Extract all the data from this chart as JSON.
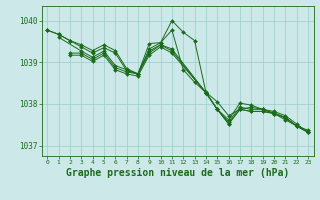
{
  "background_color": "#cce8e8",
  "grid_color": "#99cccc",
  "line_color": "#1a6b1a",
  "xlabel": "Graphe pression niveau de la mer (hPa)",
  "xlabel_fontsize": 7,
  "ylabel_ticks": [
    1037,
    1038,
    1039,
    1040
  ],
  "xlim": [
    -0.5,
    23.5
  ],
  "ylim": [
    1036.75,
    1040.35
  ],
  "lines": [
    {
      "x": [
        0,
        1,
        2,
        3,
        4,
        5,
        6,
        7,
        8,
        9,
        10,
        11,
        12,
        13,
        14,
        15,
        16,
        17,
        18,
        19,
        20,
        21,
        22,
        23
      ],
      "y": [
        1039.77,
        1039.67,
        1039.52,
        1039.42,
        1039.28,
        1039.42,
        1039.28,
        1038.85,
        1038.72,
        1039.45,
        1039.47,
        1040.0,
        1039.72,
        1039.52,
        1038.28,
        1038.05,
        1037.72,
        1037.87,
        1037.92,
        1037.87,
        1037.78,
        1037.68,
        1037.47,
        1037.37
      ]
    },
    {
      "x": [
        0,
        1,
        2,
        3,
        4,
        5,
        6,
        7,
        8,
        9,
        10,
        11,
        12,
        13,
        14,
        15,
        16,
        17,
        18,
        19,
        20,
        21,
        22,
        23
      ],
      "y": [
        1039.77,
        1039.67,
        1039.52,
        1039.37,
        1039.22,
        1039.35,
        1039.22,
        1038.8,
        1038.72,
        1039.32,
        1039.47,
        1039.77,
        1038.82,
        1038.52,
        1038.27,
        1037.87,
        1037.62,
        1038.02,
        1037.97,
        1037.87,
        1037.82,
        1037.72,
        1037.52,
        1037.32
      ]
    },
    {
      "x": [
        1,
        3,
        4,
        5,
        6,
        7,
        8,
        9,
        10,
        11,
        14,
        15,
        16,
        17,
        18,
        19,
        20,
        21,
        22,
        23
      ],
      "y": [
        1039.6,
        1039.27,
        1039.12,
        1039.27,
        1038.92,
        1038.82,
        1038.72,
        1039.27,
        1039.42,
        1039.32,
        1038.27,
        1037.87,
        1037.57,
        1037.92,
        1037.87,
        1037.87,
        1037.77,
        1037.67,
        1037.47,
        1037.32
      ]
    },
    {
      "x": [
        2,
        3,
        4,
        5,
        6,
        7,
        8,
        9,
        10,
        11,
        14,
        15,
        16,
        17,
        18,
        19,
        20,
        21,
        22,
        23
      ],
      "y": [
        1039.22,
        1039.22,
        1039.07,
        1039.22,
        1038.87,
        1038.77,
        1038.72,
        1039.22,
        1039.42,
        1039.27,
        1038.27,
        1037.87,
        1037.52,
        1037.87,
        1037.82,
        1037.82,
        1037.77,
        1037.67,
        1037.47,
        1037.32
      ]
    },
    {
      "x": [
        2,
        3,
        4,
        5,
        6,
        7,
        8,
        9,
        10,
        11,
        14,
        15,
        16,
        17,
        18,
        19,
        20,
        21,
        22,
        23
      ],
      "y": [
        1039.17,
        1039.17,
        1039.02,
        1039.17,
        1038.82,
        1038.72,
        1038.67,
        1039.17,
        1039.37,
        1039.22,
        1038.27,
        1037.87,
        1037.52,
        1037.87,
        1037.82,
        1037.82,
        1037.77,
        1037.62,
        1037.47,
        1037.32
      ]
    }
  ]
}
